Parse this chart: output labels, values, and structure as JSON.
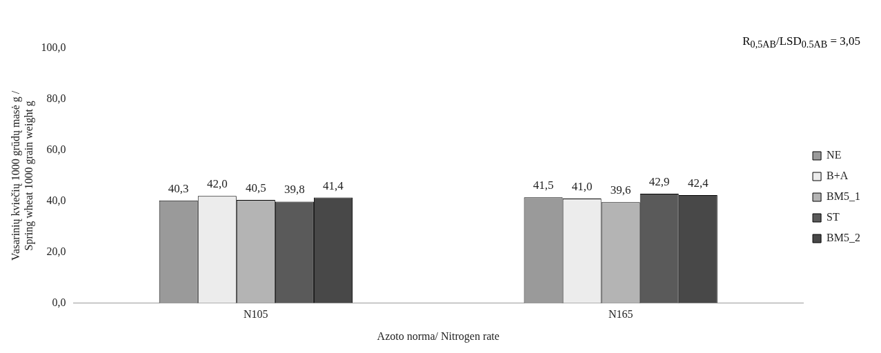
{
  "chart_data": {
    "type": "bar",
    "categories": [
      "N105",
      "N165"
    ],
    "series": [
      {
        "name": "NE",
        "color": "#9a9a9a",
        "values": [
          40.3,
          41.5
        ],
        "value_labels": [
          "40,3",
          "41,5"
        ]
      },
      {
        "name": "B+A",
        "color": "#ececec",
        "values": [
          42.0,
          41.0
        ],
        "value_labels": [
          "42,0",
          "41,0"
        ]
      },
      {
        "name": "BM5_1",
        "color": "#b4b4b4",
        "values": [
          40.5,
          39.6
        ],
        "value_labels": [
          "40,5",
          "39,6"
        ]
      },
      {
        "name": "ST",
        "color": "#5a5a5a",
        "values": [
          39.8,
          42.9
        ],
        "value_labels": [
          "39,8",
          "42,9"
        ]
      },
      {
        "name": "BM5_2",
        "color": "#484848",
        "values": [
          41.4,
          42.4
        ],
        "value_labels": [
          "41,4",
          "42,4"
        ]
      }
    ],
    "ylim": [
      0,
      100
    ],
    "yticks": [
      {
        "value": 0,
        "label": "0,0"
      },
      {
        "value": 20,
        "label": "20,0"
      },
      {
        "value": 40,
        "label": "40,0"
      },
      {
        "value": 60,
        "label": "60,0"
      },
      {
        "value": 80,
        "label": "80,0"
      },
      {
        "value": 100,
        "label": "100,0"
      }
    ],
    "ylabel": "Vasarinių kviečių 1000 grūdų masė g / Spring wheat 1000 grain weight g",
    "xlabel": "Azoto norma/ Nitrogen rate",
    "annotations": [
      "R$_{0,5AB}$/LSD$_{0.5AB}$ = 3,05"
    ],
    "grid": false,
    "legend": "right"
  }
}
